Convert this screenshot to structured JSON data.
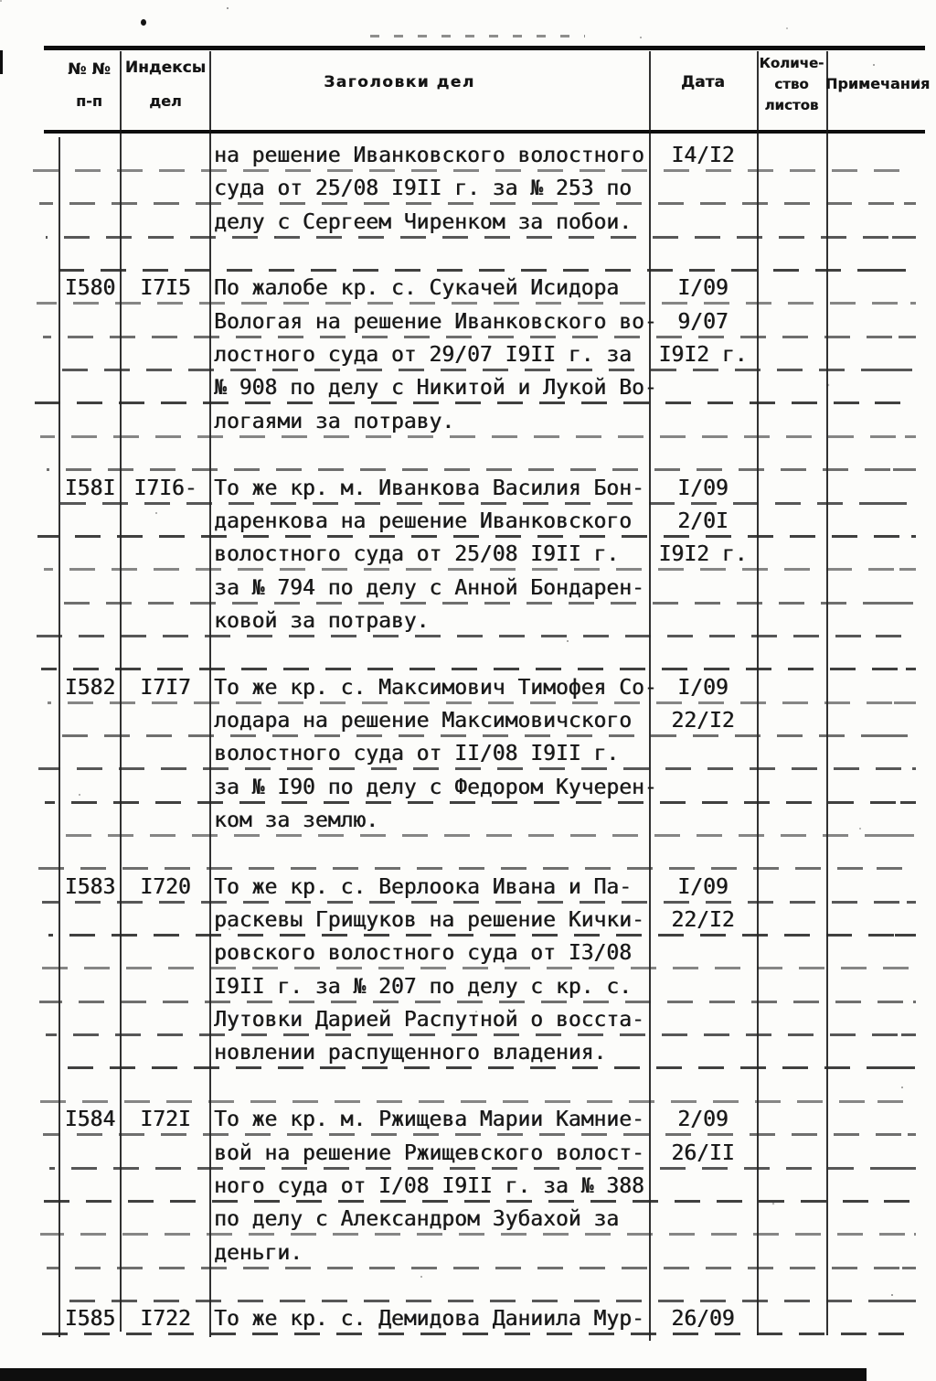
{
  "page": {
    "header": {
      "col_number": [
        "№ №",
        "п-п"
      ],
      "col_index": [
        "Индексы",
        "дел"
      ],
      "col_title": "Заголовки дел",
      "col_date": "Дата",
      "col_sheets": [
        "Количе-",
        "ство",
        "листов"
      ],
      "col_notes": "Примечания"
    },
    "entries": [
      {
        "number": "",
        "index": "",
        "title_lines": [
          "на решение Иванковского волостного",
          "суда от 25/08 I9II г. за № 253 по",
          "делу с Сергеем Чиренком за побои."
        ],
        "date_lines": [
          "I4/I2"
        ],
        "sheets": "",
        "notes": ""
      },
      {
        "number": "I580",
        "index": "I7I5",
        "title_lines": [
          "По жалобе кр. с. Сукачей Исидора",
          "Вологая на решение Иванковского во-",
          "лостного суда от 29/07 I9II г. за",
          "№ 908 по делу с Никитой и Лукой Во-",
          "логаями за потраву."
        ],
        "date_lines": [
          "I/09",
          "9/07",
          "I9I2 г."
        ],
        "sheets": "",
        "notes": ""
      },
      {
        "number": "I58I",
        "index": "I7I6-",
        "title_lines": [
          "То же кр. м. Иванкова Василия Бон-",
          "даренкова на решение Иванковского",
          "волостного суда от 25/08 I9II г.",
          "за № 794 по делу с Анной Бондарен-",
          "ковой за потраву."
        ],
        "date_lines": [
          "I/09",
          "2/0I",
          "I9I2 г."
        ],
        "sheets": "",
        "notes": ""
      },
      {
        "number": "I582",
        "index": "I7I7",
        "title_lines": [
          "То же кр. с. Максимович Тимофея Со-",
          "лодара на решение Максимовичского",
          "волостного суда от II/08 I9II г.",
          "за № I90 по делу с Федором Кучерен-",
          "ком за землю."
        ],
        "date_lines": [
          "I/09",
          "22/I2"
        ],
        "sheets": "",
        "notes": ""
      },
      {
        "number": "I583",
        "index": "I720",
        "title_lines": [
          "То же кр. с. Верлоока Ивана и Па-",
          "раскевы Грищуков на решение Кички-",
          "ровского волостного суда от I3/08",
          "I9II г. за № 207 по делу с кр. с.",
          "Лутовки Дарией Распутной о восста-",
          "новлении распущенного владения."
        ],
        "date_lines": [
          "I/09",
          "22/I2"
        ],
        "sheets": "",
        "notes": ""
      },
      {
        "number": "I584",
        "index": "I72I",
        "title_lines": [
          "То же кр. м. Ржищева Марии Камние-",
          "вой на решение Ржищевского волост-",
          "ного суда от I/08 I9II г. за № 388",
          "по делу с Александром Зубахой за",
          "деньги."
        ],
        "date_lines": [
          "2/09",
          "26/II"
        ],
        "sheets": "",
        "notes": ""
      },
      {
        "number": "I585",
        "index": "I722",
        "title_lines": [
          "То же кр. с. Демидова Даниила Мур-"
        ],
        "date_lines": [
          "26/09"
        ],
        "sheets": "",
        "notes": ""
      }
    ]
  }
}
